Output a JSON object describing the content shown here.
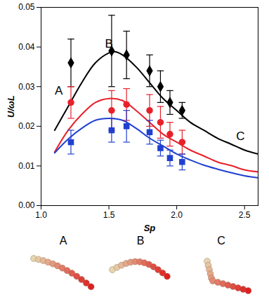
{
  "chart_data": {
    "type": "line",
    "x_label": "Sp",
    "y_label": "U/ωL",
    "xlim": [
      1.0,
      2.6
    ],
    "xticks": [
      {
        "value": 1.0,
        "label": "1.0"
      },
      {
        "value": 1.5,
        "label": "1.5"
      },
      {
        "value": 2.0,
        "label": "2.0"
      },
      {
        "value": 2.5,
        "label": "2.5"
      }
    ],
    "ylim": [
      0,
      0.05
    ],
    "yticks": [
      {
        "value": 0,
        "label": "0.00"
      },
      {
        "value": 0.01,
        "label": "0.01"
      },
      {
        "value": 0.02,
        "label": "0.02"
      },
      {
        "value": 0.03,
        "label": "0.03"
      },
      {
        "value": 0.04,
        "label": "0.04"
      },
      {
        "value": 0.05,
        "label": "0.05"
      }
    ],
    "grid": false,
    "series": [
      {
        "type": "line",
        "color": "#000000",
        "line_style": "solid",
        "x": [
          1.1,
          1.2,
          1.3,
          1.4,
          1.5,
          1.55,
          1.6,
          1.7,
          1.8,
          1.9,
          2.0,
          2.1,
          2.2,
          2.3,
          2.4,
          2.5,
          2.6
        ],
        "values": [
          0.019,
          0.025,
          0.031,
          0.036,
          0.0385,
          0.0388,
          0.038,
          0.035,
          0.031,
          0.027,
          0.024,
          0.021,
          0.019,
          0.017,
          0.0155,
          0.014,
          0.013
        ]
      },
      {
        "type": "line",
        "color": "#e8202a",
        "line_style": "solid",
        "x": [
          1.1,
          1.2,
          1.3,
          1.4,
          1.5,
          1.6,
          1.7,
          1.8,
          1.9,
          2.0,
          2.1,
          2.2,
          2.3,
          2.4,
          2.5,
          2.6
        ],
        "values": [
          0.0135,
          0.019,
          0.023,
          0.026,
          0.027,
          0.0265,
          0.024,
          0.021,
          0.018,
          0.016,
          0.014,
          0.0125,
          0.011,
          0.0101,
          0.009,
          0.0085
        ]
      },
      {
        "type": "line",
        "color": "#2040d0",
        "line_style": "solid",
        "x": [
          1.1,
          1.2,
          1.3,
          1.4,
          1.5,
          1.6,
          1.7,
          1.8,
          1.9,
          2.0,
          2.1,
          2.2,
          2.3,
          2.4,
          2.5,
          2.6
        ],
        "values": [
          0.0133,
          0.0168,
          0.0195,
          0.0215,
          0.022,
          0.0215,
          0.0195,
          0.017,
          0.015,
          0.013,
          0.0115,
          0.0102,
          0.0092,
          0.0083,
          0.0075,
          0.007
        ]
      },
      {
        "type": "scatter",
        "color": "#000000",
        "marker": "diamond",
        "x": [
          1.22,
          1.52,
          1.63,
          1.8,
          1.88,
          1.95,
          2.04
        ],
        "values": [
          0.036,
          0.039,
          0.038,
          0.034,
          0.03,
          0.026,
          0.024
        ],
        "errors": [
          0.006,
          0.009,
          0.006,
          0.004,
          0.004,
          0.003,
          0.002
        ]
      },
      {
        "type": "scatter",
        "color": "#e8202a",
        "marker": "circle",
        "x": [
          1.22,
          1.52,
          1.63,
          1.8,
          1.88,
          1.95,
          2.04
        ],
        "values": [
          0.026,
          0.024,
          0.0255,
          0.024,
          0.021,
          0.018,
          0.016
        ],
        "errors": [
          0.004,
          0.005,
          0.004,
          0.004,
          0.004,
          0.003,
          0.003
        ]
      },
      {
        "type": "scatter",
        "color": "#2040d0",
        "marker": "square",
        "x": [
          1.22,
          1.52,
          1.63,
          1.8,
          1.88,
          1.95,
          2.04
        ],
        "values": [
          0.016,
          0.019,
          0.02,
          0.0185,
          0.0145,
          0.012,
          0.011
        ],
        "errors": [
          0.003,
          0.003,
          0.004,
          0.003,
          0.002,
          0.002,
          0.002
        ]
      }
    ],
    "annotations": [
      {
        "text": "A",
        "x": 1.13,
        "y": 0.029
      },
      {
        "text": "B",
        "x": 1.5,
        "y": 0.0408
      },
      {
        "text": "C",
        "x": 2.47,
        "y": 0.0175
      }
    ]
  },
  "figure_panels": {
    "labels": [
      "A",
      "B",
      "C"
    ]
  }
}
